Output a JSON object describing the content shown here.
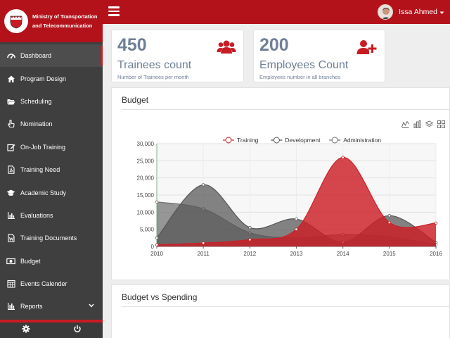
{
  "brand": {
    "line1": "Ministry of Transportation",
    "line2": "and Telecommunication"
  },
  "nav": [
    {
      "label": "Dashboard",
      "icon": "dashboard-icon",
      "active": true
    },
    {
      "label": "Program Design",
      "icon": "home-icon"
    },
    {
      "label": "Scheduling",
      "icon": "folder-icon"
    },
    {
      "label": "Nomination",
      "icon": "hand-pointer-icon"
    },
    {
      "label": "On-Job Training",
      "icon": "edit-icon"
    },
    {
      "label": "Training Need",
      "icon": "pdf-file-icon"
    },
    {
      "label": "Academic Study",
      "icon": "graduation-cap-icon"
    },
    {
      "label": "Evaluations",
      "icon": "bar-chart-icon"
    },
    {
      "label": "Training Documents",
      "icon": "word-file-icon"
    },
    {
      "label": "Budget",
      "icon": "money-icon"
    },
    {
      "label": "Events Calender",
      "icon": "calendar-icon"
    },
    {
      "label": "Reports",
      "icon": "report-chart-icon",
      "has_submenu": true
    }
  ],
  "user": {
    "name": "Issa Ahmed"
  },
  "stats": {
    "trainees": {
      "number": "450",
      "title": "Trainees count",
      "subtitle": "Number of Trainees per month",
      "icon": "users-icon"
    },
    "employees": {
      "number": "200",
      "title": "Employees Count",
      "subtitle": "Employees number in all branches",
      "icon": "user-plus-icon"
    }
  },
  "panels": {
    "budget_title": "Budget",
    "budget_vs_spending_title": "Budget vs Spending"
  },
  "colors": {
    "brand_red": "#b3121b",
    "sidebar": "#3f3f3f",
    "training": "#cc1f26",
    "development": "#555555",
    "administration": "#707070"
  },
  "chart_data": {
    "type": "area",
    "x": [
      2010,
      2011,
      2012,
      2013,
      2014,
      2015,
      2016
    ],
    "ylim": [
      0,
      30000
    ],
    "yticks": [
      "0",
      "5,000",
      "10,000",
      "15,000",
      "20,000",
      "25,000",
      "30,000"
    ],
    "legend_position": "top-center",
    "grid": true,
    "series": [
      {
        "name": "Training",
        "values": [
          500,
          1000,
          2000,
          5000,
          26000,
          7000,
          6800
        ]
      },
      {
        "name": "Development",
        "values": [
          2500,
          18000,
          5500,
          8000,
          1200,
          9000,
          1200
        ]
      },
      {
        "name": "Administration",
        "values": [
          13000,
          11000,
          4000,
          2500,
          3500,
          2800,
          500
        ]
      }
    ]
  }
}
